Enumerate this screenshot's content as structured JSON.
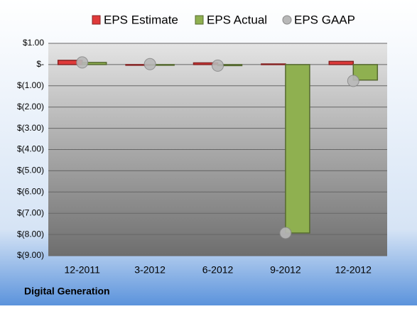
{
  "chart_data": {
    "type": "bar",
    "footnote": "Digital Generation",
    "categories": [
      "12-2011",
      "3-2012",
      "6-2012",
      "9-2012",
      "12-2012"
    ],
    "series": [
      {
        "name": "EPS Estimate",
        "color": "#e03a3a",
        "style": "bar",
        "values": [
          0.2,
          -0.02,
          0.08,
          0.03,
          0.15
        ]
      },
      {
        "name": "EPS Actual",
        "color": "#8fb050",
        "style": "bar",
        "values": [
          0.1,
          0.0,
          -0.05,
          -7.93,
          -0.73
        ]
      },
      {
        "name": "EPS GAAP",
        "color": "#b8b8b8",
        "style": "marker",
        "values": [
          0.1,
          0.02,
          -0.05,
          -7.93,
          -0.77
        ]
      }
    ],
    "ylim": [
      -9,
      1
    ],
    "yticks": [
      {
        "value": 1,
        "label": "$1.00"
      },
      {
        "value": 0,
        "label": "$-"
      },
      {
        "value": -1,
        "label": "$(1.00)"
      },
      {
        "value": -2,
        "label": "$(2.00)"
      },
      {
        "value": -3,
        "label": "$(3.00)"
      },
      {
        "value": -4,
        "label": "$(4.00)"
      },
      {
        "value": -5,
        "label": "$(5.00)"
      },
      {
        "value": -6,
        "label": "$(6.00)"
      },
      {
        "value": -7,
        "label": "$(7.00)"
      },
      {
        "value": -8,
        "label": "$(8.00)"
      },
      {
        "value": -9,
        "label": "$(9.00)"
      }
    ],
    "grid": true
  }
}
